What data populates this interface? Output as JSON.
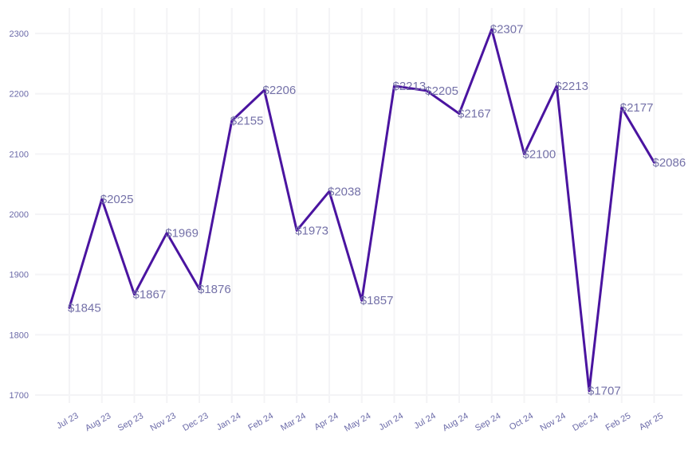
{
  "chart_data": {
    "type": "line",
    "title": "",
    "xlabel": "",
    "ylabel": "",
    "categories": [
      "Jul 23",
      "Aug 23",
      "Sep 23",
      "Nov 23",
      "Dec 23",
      "Jan 24",
      "Feb 24",
      "Mar 24",
      "Apr 24",
      "May 24",
      "Jun 24",
      "Jul 24",
      "Aug 24",
      "Sep 24",
      "Oct 24",
      "Nov 24",
      "Dec 24",
      "Feb 25",
      "Apr 25"
    ],
    "values": [
      1845,
      2025,
      1867,
      1969,
      1876,
      2155,
      2206,
      1973,
      2038,
      1857,
      2213,
      2205,
      2167,
      2307,
      2100,
      2213,
      1707,
      2177,
      2086
    ],
    "data_labels": [
      "$1845",
      "$2025",
      "$1867",
      "$1969",
      "$1876",
      "$2155",
      "$2206",
      "$1973",
      "$2038",
      "$1857",
      "$2213",
      "$2205",
      "$2167",
      "$2307",
      "$2100",
      "$2213",
      "$1707",
      "$2177",
      "$2086"
    ],
    "y_ticks": [
      1700,
      1800,
      1900,
      2000,
      2100,
      2200,
      2300
    ],
    "y_tick_labels": [
      "1700",
      "1800",
      "1900",
      "2000",
      "2100",
      "2200",
      "2300"
    ],
    "ylim": [
      1680,
      2340
    ],
    "grid": true,
    "legend": "none",
    "colors": {
      "line": "#4a14a0",
      "data_label": "#7471a8",
      "tick_label": "#6b6aa8",
      "grid": "#f4f4f6"
    }
  }
}
